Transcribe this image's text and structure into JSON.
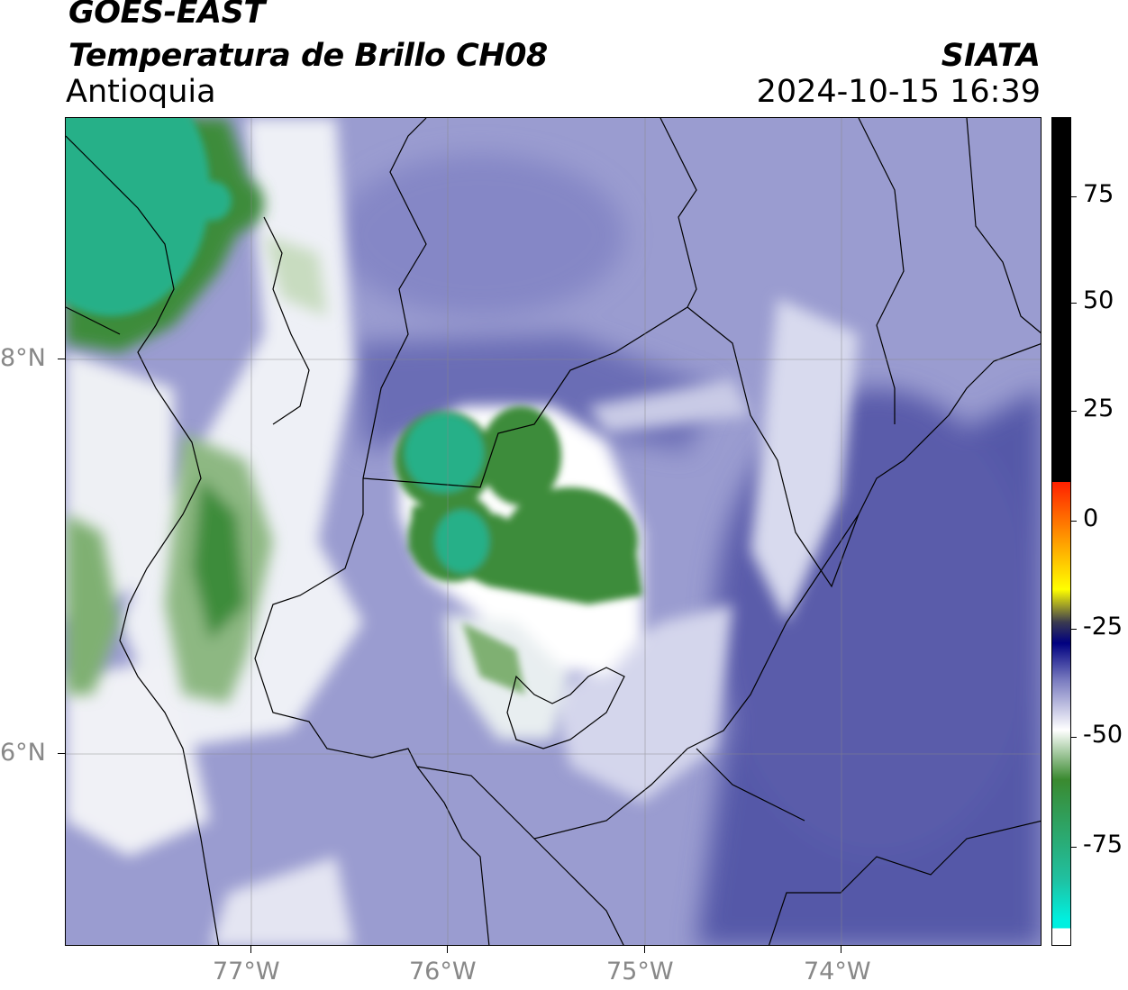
{
  "header": {
    "satellite": "GOES-EAST",
    "product": "Temperatura de Brillo CH08",
    "region": "Antioquia",
    "agency": "SIATA",
    "datetime": "2024-10-15 16:39"
  },
  "map": {
    "lon_range": [
      -77.95,
      -72.98
    ],
    "lat_range": [
      5.06,
      9.28
    ],
    "lat_ticks": [
      {
        "value": 8,
        "label": "8°N"
      },
      {
        "value": 6,
        "label": "6°N"
      }
    ],
    "lon_ticks": [
      {
        "value": -77,
        "label": "77°W"
      },
      {
        "value": -76,
        "label": "76°W"
      },
      {
        "value": -75,
        "label": "75°W"
      },
      {
        "value": -74,
        "label": "74°W"
      }
    ],
    "grid": true,
    "colors": {
      "background_field": "#9a9cd0",
      "deep_blue": "#5558a8",
      "white": "#ffffff",
      "light_green": "#c8dcc0",
      "green": "#3e8c3a",
      "teal": "#27b088",
      "border": "#000000"
    }
  },
  "colorbar": {
    "range": [
      -92,
      92
    ],
    "ticks": [
      {
        "value": 75,
        "label": "75"
      },
      {
        "value": 50,
        "label": "50"
      },
      {
        "value": 25,
        "label": "25"
      },
      {
        "value": 0,
        "label": "0"
      },
      {
        "value": -25,
        "label": "-25"
      },
      {
        "value": -50,
        "label": "-50"
      },
      {
        "value": -75,
        "label": "-75"
      }
    ],
    "colors": {
      "high": "#000000",
      "red": "#ff2000",
      "orange": "#ff9a00",
      "yellow": "#ffff00",
      "navy": "#000080",
      "blue": "#7a7cc0",
      "white": "#ffffff",
      "green": "#3a8a30",
      "teal": "#20c0a0",
      "cyan": "#00f0e0"
    }
  }
}
